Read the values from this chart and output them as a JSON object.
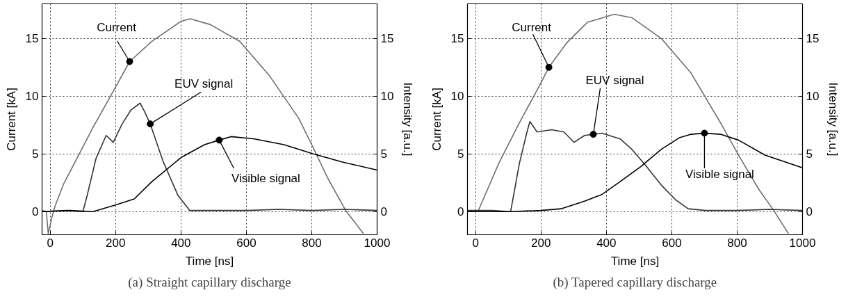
{
  "chart_data": [
    {
      "type": "line",
      "title": "(a) Straight capillary discharge",
      "xlabel": "Time [ns]",
      "ylabel": "Current [kA]",
      "y2label": "Intensity [a.u.]",
      "xlim": [
        -25,
        1000
      ],
      "xticks": [
        0,
        200,
        400,
        600,
        800,
        1000
      ],
      "ylim": [
        -2,
        18
      ],
      "yticks": [
        0,
        5,
        10,
        15
      ],
      "y2lim": [
        -2,
        18
      ],
      "y2ticks": [
        0,
        5,
        10,
        15
      ],
      "grid": true,
      "marker": "none",
      "line_style": "solid",
      "series": [
        {
          "color": "#6e6e6e",
          "x": [
            -25,
            -12,
            -6,
            5,
            15,
            41,
            131,
            200,
            243,
            311,
            401,
            428,
            490,
            580,
            670,
            760,
            800,
            850,
            904,
            958
          ],
          "values": [
            0.1,
            0,
            -1.9,
            -0.5,
            0.5,
            2.4,
            7.3,
            10.8,
            13,
            14.75,
            16.5,
            16.7,
            16.2,
            14.75,
            11.8,
            8.1,
            5.8,
            2.85,
            0.1,
            -1.9
          ]
        },
        {
          "color": "#333333",
          "x": [
            -25,
            50,
            100,
            113,
            140,
            171,
            193,
            220,
            247,
            275,
            288,
            306,
            346,
            391,
            427,
            500,
            600,
            700,
            800,
            900,
            1000
          ],
          "values": [
            0,
            0.1,
            0,
            1.4,
            4.6,
            6.6,
            6.0,
            7.6,
            8.8,
            9.4,
            8.7,
            7.6,
            4.3,
            1.4,
            0.1,
            0.1,
            0.1,
            0.2,
            0.1,
            0.2,
            0.1
          ]
        },
        {
          "color": "#000000",
          "x": [
            -25,
            60,
            131,
            203,
            257,
            311,
            401,
            472,
            517,
            553,
            625,
            715,
            805,
            894,
            1000
          ],
          "values": [
            0,
            0.1,
            0,
            0.6,
            1.1,
            2.6,
            4.7,
            5.8,
            6.2,
            6.5,
            6.3,
            5.8,
            5.0,
            4.3,
            3.6
          ]
        }
      ],
      "annotations": [
        {
          "text": "Current",
          "x": 243,
          "y": 13
        },
        {
          "text": "EUV signal",
          "x": 306,
          "y": 7.6
        },
        {
          "text": "Visible signal",
          "x": 517,
          "y": 6.2
        }
      ]
    },
    {
      "type": "line",
      "title": "(b) Tapered capillary discharge",
      "xlabel": "Time [ns]",
      "ylabel": "Current [kA]",
      "y2label": "Intensity [a.u.]",
      "xlim": [
        -25,
        1000
      ],
      "xticks": [
        0,
        200,
        400,
        600,
        800,
        1000
      ],
      "ylim": [
        -2,
        18
      ],
      "yticks": [
        0,
        5,
        10,
        15
      ],
      "y2lim": [
        -2,
        18
      ],
      "y2ticks": [
        0,
        5,
        10,
        15
      ],
      "grid": true,
      "marker": "none",
      "line_style": "solid",
      "series": [
        {
          "color": "#6e6e6e",
          "x": [
            -25,
            0,
            7,
            71,
            134,
            197,
            224,
            278,
            342,
            424,
            478,
            568,
            659,
            749,
            804,
            867,
            912,
            957
          ],
          "values": [
            0.1,
            0,
            0,
            4.2,
            7.7,
            11,
            12.5,
            14.6,
            16.4,
            17.1,
            16.8,
            15,
            12,
            7.7,
            4.9,
            1.9,
            0.1,
            -1.9
          ]
        },
        {
          "color": "#333333",
          "x": [
            -25,
            50,
            107,
            134,
            157,
            166,
            188,
            233,
            270,
            301,
            333,
            387,
            442,
            478,
            523,
            568,
            613,
            650,
            704,
            800,
            900,
            1000
          ],
          "values": [
            0.1,
            0.1,
            0,
            4.2,
            6.9,
            7.8,
            6.9,
            7.1,
            6.9,
            6.0,
            6.6,
            6.8,
            6.3,
            5.4,
            3.9,
            2.3,
            1.0,
            0.25,
            0.1,
            0.1,
            0.2,
            0.1
          ]
        },
        {
          "color": "#000000",
          "x": [
            -25,
            100,
            200,
            261,
            333,
            387,
            442,
            505,
            568,
            623,
            659,
            700,
            749,
            804,
            885,
            1000
          ],
          "values": [
            0,
            0,
            0.1,
            0.25,
            0.9,
            1.5,
            2.6,
            3.9,
            5.4,
            6.4,
            6.7,
            6.8,
            6.7,
            6.2,
            4.9,
            3.8
          ]
        }
      ],
      "annotations": [
        {
          "text": "Current",
          "x": 224,
          "y": 12.5
        },
        {
          "text": "EUV signal",
          "x": 360,
          "y": 6.7
        },
        {
          "text": "Visible signal",
          "x": 700,
          "y": 6.8
        }
      ]
    }
  ]
}
